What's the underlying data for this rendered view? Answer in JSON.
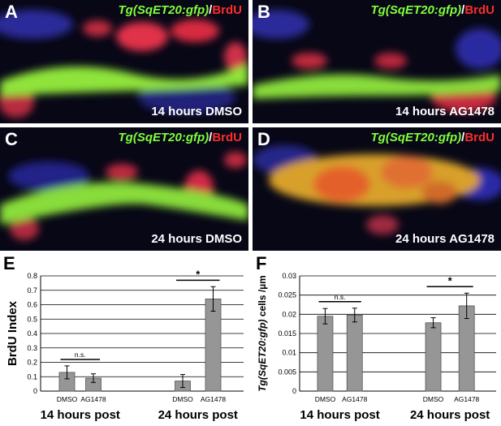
{
  "panels": [
    {
      "letter": "A",
      "stain_tg": "Tg(SqET20:gfp)",
      "stain_slash": "/",
      "stain_brdu": "BrdU",
      "condition": "14 hours DMSO"
    },
    {
      "letter": "B",
      "stain_tg": "Tg(SqET20:gfp)",
      "stain_slash": "/",
      "stain_brdu": "BrdU",
      "condition": "14 hours AG1478"
    },
    {
      "letter": "C",
      "stain_tg": "Tg(SqET20:gfp)",
      "stain_slash": "/",
      "stain_brdu": "BrdU",
      "condition": "24 hours DMSO"
    },
    {
      "letter": "D",
      "stain_tg": "Tg(SqET20:gfp)",
      "stain_slash": "/",
      "stain_brdu": "BrdU",
      "condition": "24 hours AG1478"
    }
  ],
  "colors": {
    "bar_fill": "#969696",
    "gfp": "#7fff3a",
    "brdu": "#ff2d2d"
  },
  "chart_data": [
    {
      "panel_letter": "E",
      "type": "bar",
      "ylabel": "BrdU Index",
      "ylim": [
        0,
        0.8
      ],
      "yticks": [
        "0",
        "0.1",
        "0.2",
        "0.3",
        "0.4",
        "0.5",
        "0.6",
        "0.7",
        "0.8"
      ],
      "grid": true,
      "categories": [
        "DMSO",
        "AG1478",
        "DMSO",
        "AG1478"
      ],
      "values": [
        0.13,
        0.09,
        0.07,
        0.64
      ],
      "errors": [
        0.045,
        0.03,
        0.045,
        0.085
      ],
      "groups": [
        "14 hours post",
        "24 hours post"
      ],
      "annotations": [
        {
          "between": [
            0,
            1
          ],
          "label": "n.s."
        },
        {
          "between": [
            2,
            3
          ],
          "label": "*"
        }
      ]
    },
    {
      "panel_letter": "F",
      "type": "bar",
      "ylabel": "Tg(SqET20:gfp) cells /µm",
      "ylim": [
        0,
        0.03
      ],
      "yticks": [
        "0",
        "0.005",
        "0.01",
        "0.015",
        "0.02",
        "0.025",
        "0.03"
      ],
      "grid": true,
      "categories": [
        "DMSO",
        "AG1478",
        "DMSO",
        "AG1478"
      ],
      "values": [
        0.0195,
        0.0198,
        0.0178,
        0.0222
      ],
      "errors": [
        0.002,
        0.0018,
        0.0013,
        0.0033
      ],
      "groups": [
        "14 hours post",
        "24 hours post"
      ],
      "annotations": [
        {
          "between": [
            0,
            1
          ],
          "label": "n.s."
        },
        {
          "between": [
            2,
            3
          ],
          "label": "*"
        }
      ]
    }
  ]
}
